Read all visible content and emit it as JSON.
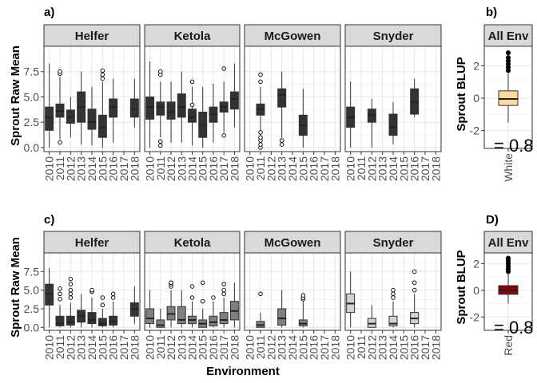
{
  "figure": {
    "x_axis_title": "Environment",
    "years": [
      "2010",
      "2011",
      "2012",
      "2013",
      "2014",
      "2015",
      "2016",
      "2017",
      "2018"
    ]
  },
  "chart_data": [
    {
      "panel": "a)",
      "type": "boxplot",
      "ylabel": "Sprout Raw Mean",
      "yticks": [
        0.0,
        2.5,
        5.0,
        7.5
      ],
      "yticklabels": [
        "0.0",
        "2.5",
        "5.0",
        "7.5"
      ],
      "ylim": [
        -0.4,
        10.0
      ],
      "fill": "#333333",
      "facets": [
        {
          "name": "Helfer",
          "boxes": [
            {
              "x": "2010",
              "min": 0.0,
              "q1": 1.7,
              "median": 3.0,
              "q3": 4.0,
              "max": 8.3,
              "outliers": []
            },
            {
              "x": "2011",
              "min": 0.8,
              "q1": 3.0,
              "median": 3.6,
              "q3": 4.3,
              "max": 7.0,
              "outliers": [
                0.5,
                7.3,
                7.5
              ]
            },
            {
              "x": "2012",
              "min": 1.0,
              "q1": 2.4,
              "median": 3.0,
              "q3": 3.7,
              "max": 5.0,
              "outliers": []
            },
            {
              "x": "2013",
              "min": 0.3,
              "q1": 2.5,
              "median": 4.0,
              "q3": 5.5,
              "max": 7.5,
              "outliers": []
            },
            {
              "x": "2014",
              "min": 0.2,
              "q1": 1.8,
              "median": 2.5,
              "q3": 3.8,
              "max": 6.0,
              "outliers": []
            },
            {
              "x": "2015",
              "min": 0.0,
              "q1": 1.0,
              "median": 2.0,
              "q3": 3.2,
              "max": 6.5,
              "outliers": [
                6.8,
                7.2,
                7.6
              ]
            },
            {
              "x": "2016",
              "min": 0.5,
              "q1": 3.0,
              "median": 4.0,
              "q3": 4.8,
              "max": 6.8,
              "outliers": []
            },
            {
              "x": "2018",
              "min": 2.0,
              "q1": 3.0,
              "median": 3.8,
              "q3": 4.8,
              "max": 6.8,
              "outliers": []
            }
          ]
        },
        {
          "name": "Ketola",
          "boxes": [
            {
              "x": "2010",
              "min": 0.0,
              "q1": 2.8,
              "median": 4.0,
              "q3": 5.0,
              "max": 8.5,
              "outliers": []
            },
            {
              "x": "2011",
              "min": 1.0,
              "q1": 3.2,
              "median": 4.0,
              "q3": 4.5,
              "max": 6.5,
              "outliers": [
                0.2,
                0.6,
                7.2,
                7.5
              ]
            },
            {
              "x": "2012",
              "min": 0.5,
              "q1": 2.8,
              "median": 3.5,
              "q3": 4.5,
              "max": 6.5,
              "outliers": []
            },
            {
              "x": "2013",
              "min": 0.5,
              "q1": 3.0,
              "median": 4.0,
              "q3": 5.3,
              "max": 7.5,
              "outliers": []
            },
            {
              "x": "2014",
              "min": 0.2,
              "q1": 2.5,
              "median": 3.0,
              "q3": 3.8,
              "max": 6.0,
              "outliers": [
                4.2,
                6.5
              ]
            },
            {
              "x": "2015",
              "min": 0.0,
              "q1": 1.0,
              "median": 2.2,
              "q3": 3.5,
              "max": 6.0,
              "outliers": []
            },
            {
              "x": "2016",
              "min": 0.5,
              "q1": 2.5,
              "median": 3.3,
              "q3": 4.0,
              "max": 6.3,
              "outliers": []
            },
            {
              "x": "2017",
              "min": 1.5,
              "q1": 3.5,
              "median": 4.0,
              "q3": 4.5,
              "max": 6.5,
              "outliers": [
                1.2,
                7.8
              ]
            },
            {
              "x": "2018",
              "min": 2.0,
              "q1": 3.8,
              "median": 4.8,
              "q3": 5.5,
              "max": 8.3,
              "outliers": []
            }
          ]
        },
        {
          "name": "McGowen",
          "boxes": [
            {
              "x": "2011",
              "min": 1.0,
              "q1": 3.2,
              "median": 3.8,
              "q3": 4.3,
              "max": 6.0,
              "outliers": [
                0.0,
                0.3,
                0.7,
                1.0,
                1.5,
                6.5,
                7.2
              ]
            },
            {
              "x": "2013",
              "min": 1.0,
              "q1": 4.0,
              "median": 5.2,
              "q3": 5.8,
              "max": 7.5,
              "outliers": [
                0.3,
                0.7
              ]
            },
            {
              "x": "2015",
              "min": 0.0,
              "q1": 1.2,
              "median": 2.2,
              "q3": 3.2,
              "max": 5.8,
              "outliers": []
            }
          ]
        },
        {
          "name": "Snyder",
          "boxes": [
            {
              "x": "2010",
              "min": 0.0,
              "q1": 2.0,
              "median": 3.0,
              "q3": 4.0,
              "max": 6.5,
              "outliers": []
            },
            {
              "x": "2012",
              "min": 0.0,
              "q1": 2.5,
              "median": 3.2,
              "q3": 3.8,
              "max": 4.8,
              "outliers": []
            },
            {
              "x": "2014",
              "min": 0.3,
              "q1": 1.2,
              "median": 2.0,
              "q3": 3.3,
              "max": 4.5,
              "outliers": []
            },
            {
              "x": "2016",
              "min": 3.0,
              "q1": 3.3,
              "median": 4.5,
              "q3": 5.8,
              "max": 6.8,
              "outliers": []
            }
          ]
        }
      ]
    },
    {
      "panel": "b)",
      "type": "boxplot",
      "ylabel": "Sprout BLUP",
      "yticks": [
        -2,
        0,
        2
      ],
      "yticklabels": [
        "-2",
        "0",
        "2"
      ],
      "ylim": [
        -3.1,
        3.2
      ],
      "fill": "#FED8A1",
      "overlay_label": "= 0.8",
      "facets": [
        {
          "name": "All Env",
          "boxes": [
            {
              "x": "White",
              "min": -1.5,
              "q1": -0.45,
              "median": -0.05,
              "q3": 0.45,
              "max": 1.5,
              "outliers": [
                1.7,
                1.9,
                2.1,
                2.3,
                2.5,
                2.8
              ]
            }
          ]
        }
      ]
    },
    {
      "panel": "c)",
      "type": "boxplot",
      "ylabel": "Sprout Raw Mean",
      "yticks": [
        0.0,
        2.5,
        5.0,
        7.5
      ],
      "yticklabels": [
        "0.0",
        "2.5",
        "5.0",
        "7.5"
      ],
      "ylim": [
        -0.4,
        10.0
      ],
      "fill": "#808080",
      "facets": [
        {
          "name": "Helfer",
          "fill": "#333333",
          "boxes": [
            {
              "x": "2010",
              "min": 0.0,
              "q1": 3.0,
              "median": 4.5,
              "q3": 5.8,
              "max": 8.0,
              "outliers": []
            },
            {
              "x": "2011",
              "min": 0.0,
              "q1": 0.2,
              "median": 0.5,
              "q3": 1.5,
              "max": 3.0,
              "outliers": [
                3.8,
                4.5,
                5.2
              ]
            },
            {
              "x": "2012",
              "min": 0.0,
              "q1": 0.3,
              "median": 0.7,
              "q3": 1.5,
              "max": 3.3,
              "outliers": [
                4.0,
                4.5,
                5.0,
                5.8,
                6.5
              ]
            },
            {
              "x": "2013",
              "min": 0.0,
              "q1": 0.7,
              "median": 1.5,
              "q3": 2.3,
              "max": 4.5,
              "outliers": []
            },
            {
              "x": "2014",
              "min": 0.0,
              "q1": 0.5,
              "median": 1.0,
              "q3": 2.0,
              "max": 4.0,
              "outliers": [
                4.8,
                5.0
              ]
            },
            {
              "x": "2015",
              "min": 0.0,
              "q1": 0.2,
              "median": 0.5,
              "q3": 1.2,
              "max": 2.5,
              "outliers": [
                3.0,
                4.0
              ]
            },
            {
              "x": "2016",
              "min": 0.0,
              "q1": 0.3,
              "median": 0.8,
              "q3": 1.5,
              "max": 3.5,
              "outliers": [
                4.0,
                4.5
              ]
            },
            {
              "x": "2018",
              "min": 0.5,
              "q1": 1.5,
              "median": 2.5,
              "q3": 3.3,
              "max": 5.5,
              "outliers": []
            }
          ]
        },
        {
          "name": "Ketola",
          "boxes": [
            {
              "x": "2010",
              "min": 0.0,
              "q1": 0.5,
              "median": 1.2,
              "q3": 2.5,
              "max": 5.0,
              "outliers": []
            },
            {
              "x": "2011",
              "min": 0.0,
              "q1": 0.0,
              "median": 0.3,
              "q3": 1.0,
              "max": 2.5,
              "outliers": []
            },
            {
              "x": "2012",
              "min": 0.0,
              "q1": 1.0,
              "median": 1.8,
              "q3": 2.8,
              "max": 5.0,
              "outliers": [
                5.5,
                5.8,
                6.0
              ]
            },
            {
              "x": "2013",
              "min": 0.0,
              "q1": 0.5,
              "median": 1.0,
              "q3": 2.8,
              "max": 5.0,
              "outliers": []
            },
            {
              "x": "2014",
              "min": 0.0,
              "q1": 0.5,
              "median": 1.0,
              "q3": 1.5,
              "max": 3.5,
              "outliers": [
                4.0,
                5.5
              ]
            },
            {
              "x": "2015",
              "min": 0.0,
              "q1": 0.0,
              "median": 0.5,
              "q3": 1.0,
              "max": 2.5,
              "outliers": [
                3.5,
                6.0
              ]
            },
            {
              "x": "2016",
              "min": 0.0,
              "q1": 0.2,
              "median": 0.7,
              "q3": 1.5,
              "max": 3.5,
              "outliers": [
                4.0
              ]
            },
            {
              "x": "2017",
              "min": 0.0,
              "q1": 0.5,
              "median": 1.0,
              "q3": 2.0,
              "max": 4.0,
              "outliers": [
                4.5,
                5.0,
                5.8
              ]
            },
            {
              "x": "2018",
              "min": 0.0,
              "q1": 1.0,
              "median": 2.2,
              "q3": 3.5,
              "max": 6.0,
              "outliers": []
            }
          ]
        },
        {
          "name": "McGowen",
          "boxes": [
            {
              "x": "2011",
              "min": 0.0,
              "q1": 0.0,
              "median": 0.3,
              "q3": 0.8,
              "max": 2.0,
              "outliers": [
                4.5
              ]
            },
            {
              "x": "2013",
              "min": 0.0,
              "q1": 0.3,
              "median": 1.2,
              "q3": 2.5,
              "max": 5.0,
              "outliers": []
            },
            {
              "x": "2015",
              "min": 0.0,
              "q1": 0.2,
              "median": 0.5,
              "q3": 1.0,
              "max": 3.5,
              "outliers": [
                3.8,
                4.0,
                4.3
              ]
            }
          ]
        },
        {
          "name": "Snyder",
          "fill": "#D3D3D3",
          "boxes": [
            {
              "x": "2010",
              "min": 0.0,
              "q1": 2.0,
              "median": 3.2,
              "q3": 4.5,
              "max": 7.5,
              "outliers": []
            },
            {
              "x": "2012",
              "min": 0.0,
              "q1": 0.0,
              "median": 0.5,
              "q3": 1.2,
              "max": 3.0,
              "outliers": []
            },
            {
              "x": "2014",
              "min": 0.0,
              "q1": 0.2,
              "median": 0.5,
              "q3": 1.5,
              "max": 3.5,
              "outliers": [
                4.0,
                4.5,
                5.0
              ]
            },
            {
              "x": "2016",
              "min": 0.0,
              "q1": 0.5,
              "median": 1.2,
              "q3": 2.0,
              "max": 4.5,
              "outliers": [
                5.0,
                6.0,
                7.5
              ]
            }
          ]
        }
      ]
    },
    {
      "panel": "D)",
      "type": "boxplot",
      "ylabel": "Sprout BLUP",
      "yticks": [
        -2,
        0,
        2
      ],
      "yticklabels": [
        "-2",
        "0",
        "2"
      ],
      "ylim": [
        -3.0,
        2.8
      ],
      "fill": "#8B0000",
      "overlay_label": "= 0.8",
      "facets": [
        {
          "name": "All Env",
          "boxes": [
            {
              "x": "Red",
              "min": -1.0,
              "q1": -0.3,
              "median": 0.0,
              "q3": 0.35,
              "max": 1.2,
              "outliers": [
                1.4,
                1.6,
                1.8,
                2.0,
                2.2,
                2.4
              ]
            }
          ]
        }
      ]
    }
  ]
}
